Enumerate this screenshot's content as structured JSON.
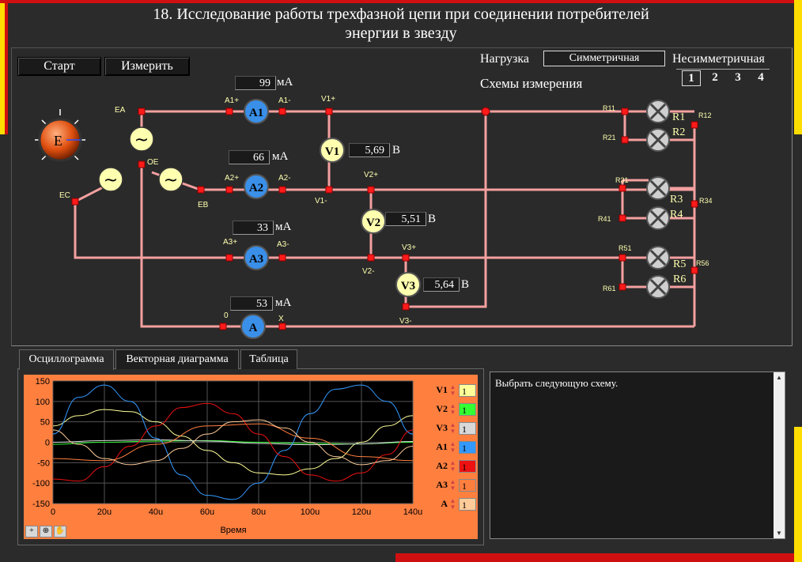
{
  "title_line1": "18. Исследование работы трехфазной цепи при соединении потребителей",
  "title_line2": "энергии в звезду",
  "buttons": {
    "start": "Старт",
    "measure": "Измерить"
  },
  "load": {
    "label": "Нагрузка",
    "value": "Симметричная",
    "asym": "Несимметричная"
  },
  "schemes": {
    "label": "Схемы измерения",
    "items": [
      "1",
      "2",
      "3",
      "4"
    ],
    "active": "1"
  },
  "source": {
    "label": "E",
    "phases": [
      "EA",
      "EB",
      "EC"
    ],
    "neutral": "OE"
  },
  "meters": {
    "a1": {
      "name": "A1",
      "value": "99",
      "unit": "мА",
      "plus": "A1+",
      "minus": "A1-"
    },
    "a2": {
      "name": "A2",
      "value": "66",
      "unit": "мА",
      "plus": "A2+",
      "minus": "A2-"
    },
    "a3": {
      "name": "A3",
      "value": "33",
      "unit": "мА",
      "plus": "A3+",
      "minus": "A3-"
    },
    "a": {
      "name": "A",
      "value": "53",
      "unit": "мА",
      "plus": "0",
      "minus": "X"
    },
    "v1": {
      "name": "V1",
      "value": "5,69",
      "unit": "В",
      "plus": "V1+",
      "minus": "V1-"
    },
    "v2": {
      "name": "V2",
      "value": "5,51",
      "unit": "В",
      "plus": "V2+",
      "minus": "V2-"
    },
    "v3": {
      "name": "V3",
      "value": "5,64",
      "unit": "В",
      "plus": "V3+",
      "minus": "V3-"
    }
  },
  "resistors": {
    "lamps": [
      "R1",
      "R2",
      "R3",
      "R4",
      "R5",
      "R6"
    ],
    "nodes": [
      "R11",
      "R21",
      "R31",
      "R41",
      "R51",
      "R61",
      "R12",
      "R34",
      "R56"
    ]
  },
  "tabs": [
    {
      "label": "Осциллограмма",
      "active": true
    },
    {
      "label": "Векторная диаграмма",
      "active": false
    },
    {
      "label": "Таблица",
      "active": false
    }
  ],
  "oscillogram": {
    "xlabel": "Время",
    "channels": [
      {
        "name": "V1",
        "value": "1",
        "color": "#ffff99"
      },
      {
        "name": "V2",
        "value": "1",
        "color": "#33ff33"
      },
      {
        "name": "V3",
        "value": "1",
        "color": "#d8d8d8"
      },
      {
        "name": "A1",
        "value": "1",
        "color": "#3399ff"
      },
      {
        "name": "A2",
        "value": "1",
        "color": "#ee1111"
      },
      {
        "name": "A3",
        "value": "1",
        "color": "#ff7f3f"
      },
      {
        "name": "A",
        "value": "1",
        "color": "#ffcc99"
      }
    ]
  },
  "message": "Выбрать следующую схему.",
  "colors": {
    "wire": "#f4a0a0",
    "node": "#ff1a1a",
    "ammeter": "#3a8fe8",
    "voltmeter": "#ffffb0"
  },
  "chart_data": {
    "type": "line",
    "title": "",
    "xlabel": "Время",
    "ylabel": "",
    "xlim": [
      0,
      140
    ],
    "ylim": [
      -150,
      150
    ],
    "x_ticks": [
      "0",
      "20u",
      "40u",
      "60u",
      "80u",
      "100u",
      "120u",
      "140u"
    ],
    "y_ticks": [
      "150",
      "100",
      "50",
      "0",
      "-50",
      "-100",
      "-150"
    ],
    "grid": true,
    "series": [
      {
        "name": "V1",
        "color": "#ffff99",
        "x": [
          0,
          10,
          20,
          30,
          40,
          50,
          60,
          70,
          80,
          90,
          100,
          110,
          120,
          130,
          140
        ],
        "values": [
          40,
          65,
          80,
          75,
          50,
          15,
          -20,
          -50,
          -75,
          -80,
          -65,
          -40,
          0,
          40,
          65
        ]
      },
      {
        "name": "V2",
        "color": "#33ff33",
        "x": [
          0,
          20,
          40,
          60,
          80,
          100,
          120,
          140
        ],
        "values": [
          -5,
          0,
          3,
          4,
          0,
          -3,
          -4,
          0
        ]
      },
      {
        "name": "V3",
        "color": "#d8d8d8",
        "x": [
          0,
          20,
          40,
          60,
          80,
          100,
          120,
          140
        ],
        "values": [
          0,
          4,
          6,
          3,
          -3,
          -6,
          -4,
          2
        ]
      },
      {
        "name": "A1",
        "color": "#3399ff",
        "x": [
          0,
          10,
          20,
          30,
          40,
          50,
          60,
          70,
          80,
          90,
          100,
          110,
          120,
          130,
          140
        ],
        "values": [
          20,
          110,
          140,
          100,
          10,
          -80,
          -130,
          -140,
          -100,
          -20,
          70,
          130,
          140,
          100,
          20
        ]
      },
      {
        "name": "A2",
        "color": "#ee1111",
        "x": [
          0,
          10,
          20,
          30,
          40,
          50,
          60,
          70,
          80,
          90,
          100,
          110,
          120,
          130,
          140
        ],
        "values": [
          -90,
          -95,
          -60,
          -10,
          40,
          85,
          95,
          70,
          20,
          -35,
          -80,
          -95,
          -75,
          -30,
          30
        ]
      },
      {
        "name": "A3",
        "color": "#ff7f3f",
        "x": [
          0,
          20,
          40,
          60,
          80,
          100,
          120,
          140
        ],
        "values": [
          -40,
          -45,
          -5,
          40,
          45,
          10,
          -35,
          -45
        ]
      },
      {
        "name": "A",
        "color": "#ffcc99",
        "x": [
          0,
          10,
          20,
          30,
          40,
          50,
          60,
          70,
          80,
          90,
          100,
          110,
          120,
          130,
          140
        ],
        "values": [
          30,
          -5,
          -40,
          -55,
          -45,
          -15,
          20,
          50,
          55,
          35,
          0,
          -35,
          -55,
          -45,
          -10
        ]
      }
    ]
  }
}
